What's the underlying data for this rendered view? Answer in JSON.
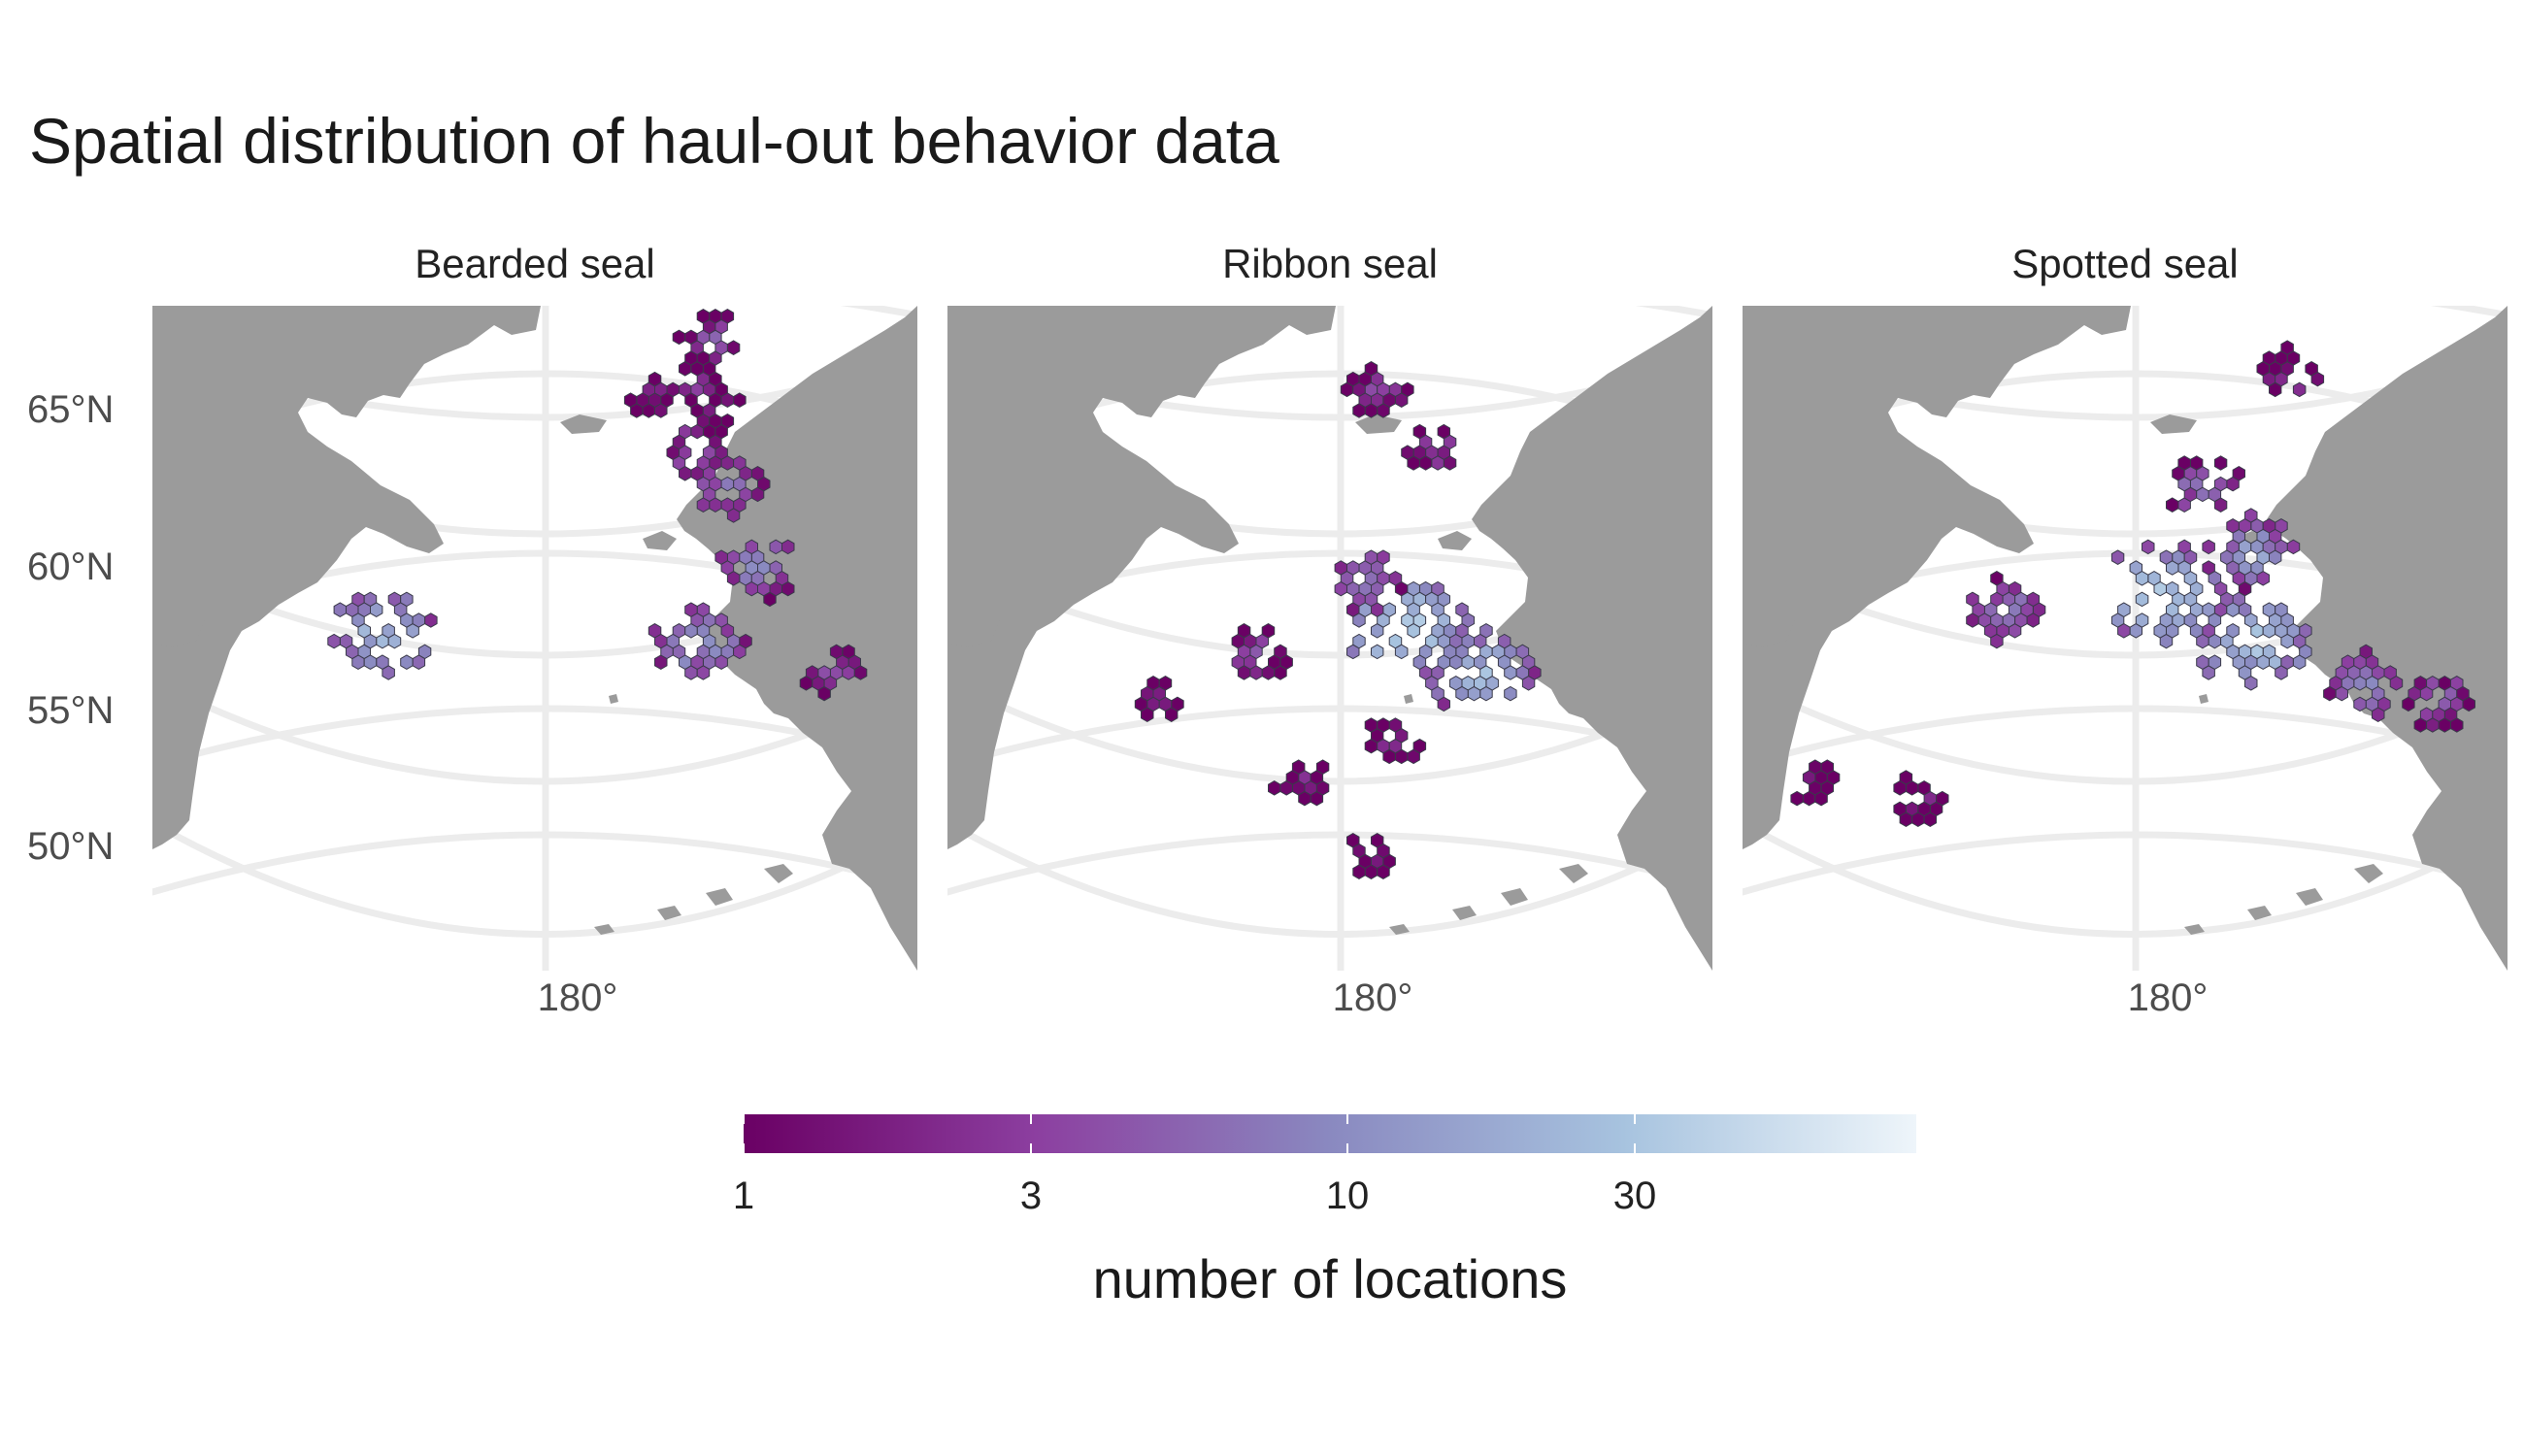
{
  "chart_data": {
    "type": "heatmap",
    "title": "Spatial distribution of haul-out behavior data",
    "facets": [
      "Bearded seal",
      "Ribbon seal",
      "Spotted seal"
    ],
    "y_axis_labels": [
      "65°N",
      "60°N",
      "55°N",
      "50°N"
    ],
    "x_axis_labels": [
      "180°"
    ],
    "legend": {
      "title": "number of locations",
      "scale": "log",
      "ticks": [
        "1",
        "3",
        "10",
        "30"
      ],
      "colors": [
        "#6a0064",
        "#8c3fa0",
        "#8a89c0",
        "#a7c3df",
        "#eef5fa"
      ]
    },
    "land_color": "#9b9b9b",
    "graticule_color": "#ececec",
    "series": [
      {
        "name": "Bearded seal",
        "clusters": [
          {
            "lat": 64.8,
            "lon": -171.5,
            "value": 2
          },
          {
            "lat": 65.2,
            "lon": -168.8,
            "value": 3
          },
          {
            "lat": 64.3,
            "lon": -167.2,
            "value": 2
          },
          {
            "lat": 66.6,
            "lon": -166.5,
            "value": 4
          },
          {
            "lat": 63.1,
            "lon": -169.0,
            "value": 5
          },
          {
            "lat": 62.0,
            "lon": -167.5,
            "value": 6
          },
          {
            "lat": 59.5,
            "lon": -166.5,
            "value": 8
          },
          {
            "lat": 57.0,
            "lon": -171.0,
            "value": 12
          },
          {
            "lat": 55.8,
            "lon": -163.5,
            "value": 4
          },
          {
            "lat": 57.2,
            "lon": 170.5,
            "value": 20
          }
        ]
      },
      {
        "name": "Ribbon seal",
        "clusters": [
          {
            "lat": 65.0,
            "lon": -177.0,
            "value": 3
          },
          {
            "lat": 63.2,
            "lon": -173.5,
            "value": 3
          },
          {
            "lat": 59.0,
            "lon": -178.5,
            "value": 8
          },
          {
            "lat": 57.5,
            "lon": -176.0,
            "value": 30
          },
          {
            "lat": 56.0,
            "lon": -172.0,
            "value": 20
          },
          {
            "lat": 56.5,
            "lon": 175.0,
            "value": 4
          },
          {
            "lat": 55.0,
            "lon": 170.0,
            "value": 2
          },
          {
            "lat": 53.5,
            "lon": -177.0,
            "value": 3
          },
          {
            "lat": 52.0,
            "lon": 178.0,
            "value": 2
          },
          {
            "lat": 49.5,
            "lon": -178.5,
            "value": 2
          }
        ]
      },
      {
        "name": "Spotted seal",
        "clusters": [
          {
            "lat": 65.5,
            "lon": -168.0,
            "value": 3
          },
          {
            "lat": 62.0,
            "lon": -175.5,
            "value": 6
          },
          {
            "lat": 60.0,
            "lon": -172.5,
            "value": 12
          },
          {
            "lat": 58.5,
            "lon": -178.5,
            "value": 30
          },
          {
            "lat": 57.0,
            "lon": -173.0,
            "value": 25
          },
          {
            "lat": 58.0,
            "lon": 172.0,
            "value": 8
          },
          {
            "lat": 55.5,
            "lon": -167.0,
            "value": 8
          },
          {
            "lat": 55.0,
            "lon": -163.0,
            "value": 5
          },
          {
            "lat": 52.0,
            "lon": 163.0,
            "value": 2
          },
          {
            "lat": 51.5,
            "lon": 169.0,
            "value": 2
          }
        ]
      }
    ]
  }
}
